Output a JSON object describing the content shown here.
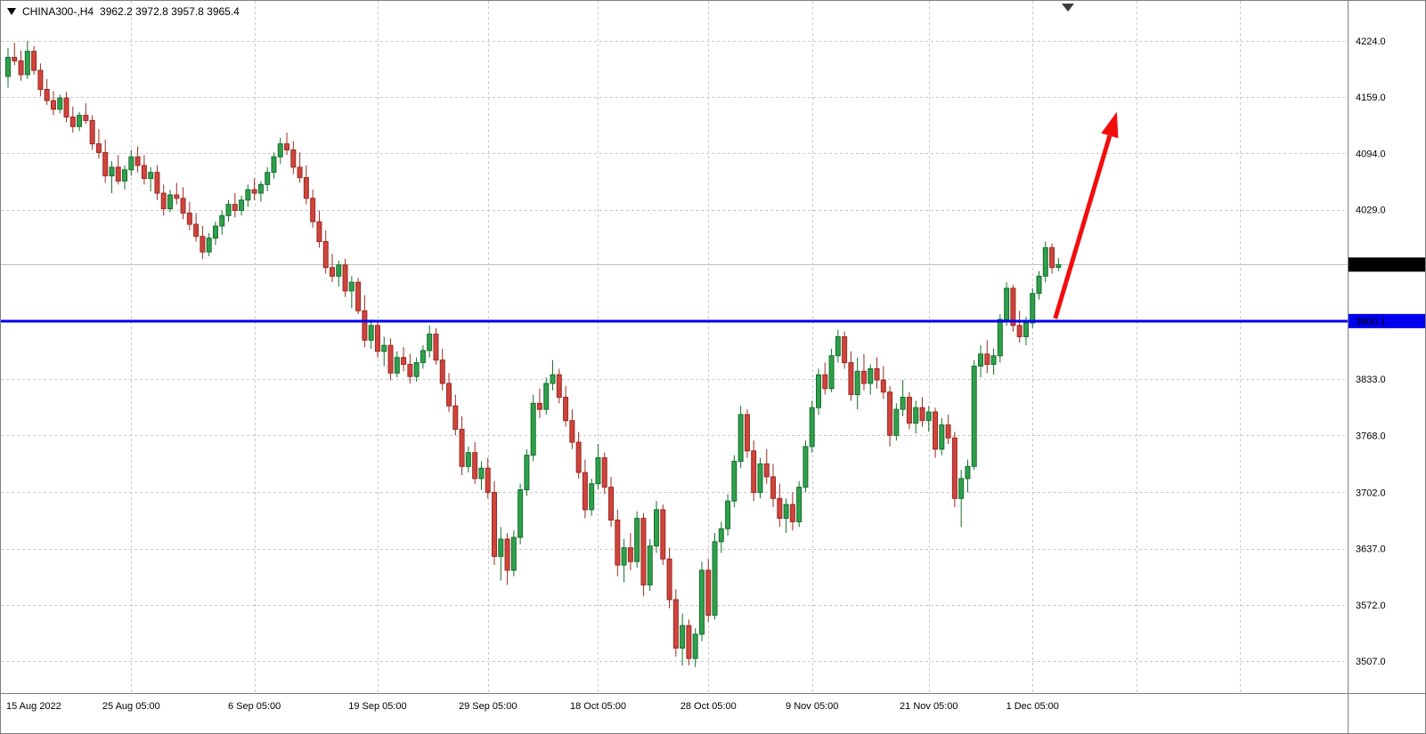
{
  "header": {
    "symbol_timeframe": "CHINA300-,H4",
    "ohlc_values": "3962.2 3972.8 3957.8 3965.4"
  },
  "chart_data": {
    "type": "candlestick",
    "symbol": "CHINA300-",
    "timeframe": "H4",
    "last_ohlc": {
      "open": 3962.2,
      "high": 3972.8,
      "low": 3957.8,
      "close": 3965.4
    },
    "style": {
      "up_fill": "#2FA04B",
      "up_stroke": "#156F2D",
      "down_fill": "#D0443C",
      "down_stroke": "#992A23",
      "grid_color": "#C8C8C8",
      "axis_line_color": "#808080"
    },
    "y_axis": {
      "decimals": 1,
      "gridline_values": [
        4224.0,
        4159.0,
        4094.0,
        4029.0,
        3833.0,
        3768.0,
        3702.0,
        3637.0,
        3572.0,
        3507.0
      ]
    },
    "x_axis": {
      "ticks": [
        {
          "index": 0,
          "label": "15 Aug 2022"
        },
        {
          "index": 19,
          "label": "25 Aug 05:00"
        },
        {
          "index": 38,
          "label": "6 Sep 05:00"
        },
        {
          "index": 57,
          "label": "19 Sep 05:00"
        },
        {
          "index": 74,
          "label": "29 Sep 05:00"
        },
        {
          "index": 91,
          "label": "18 Oct 05:00"
        },
        {
          "index": 108,
          "label": "28 Oct 05:00"
        },
        {
          "index": 124,
          "label": "9 Nov 05:00"
        },
        {
          "index": 142,
          "label": "21 Nov 05:00"
        },
        {
          "index": 158,
          "label": "1 Dec 05:00"
        }
      ],
      "extra_gridline_indices": [
        174,
        190
      ]
    },
    "last_price": {
      "value": 3965.4,
      "badge_bg": "#000000",
      "badge_text_color": "#FFFFFF",
      "line_color": "#C0C0C0"
    },
    "hline": {
      "value": 3900.1,
      "color": "#0000EE",
      "width": 3,
      "badge_text_color": "#FFFFFF"
    },
    "arrow": {
      "color": "#F20D0D",
      "from": {
        "i": 161.5,
        "price": 3903
      },
      "to": {
        "i": 171,
        "price": 4142
      }
    },
    "candles": [
      [
        4183,
        4216,
        4170,
        4205
      ],
      [
        4205,
        4222,
        4196,
        4201
      ],
      [
        4201,
        4213,
        4178,
        4185
      ],
      [
        4185,
        4224,
        4180,
        4212
      ],
      [
        4212,
        4218,
        4185,
        4190
      ],
      [
        4190,
        4198,
        4160,
        4168
      ],
      [
        4168,
        4180,
        4150,
        4155
      ],
      [
        4155,
        4166,
        4138,
        4145
      ],
      [
        4145,
        4162,
        4140,
        4158
      ],
      [
        4158,
        4165,
        4130,
        4136
      ],
      [
        4136,
        4148,
        4118,
        4125
      ],
      [
        4125,
        4142,
        4120,
        4138
      ],
      [
        4138,
        4152,
        4128,
        4132
      ],
      [
        4132,
        4138,
        4098,
        4105
      ],
      [
        4105,
        4122,
        4088,
        4095
      ],
      [
        4095,
        4110,
        4060,
        4068
      ],
      [
        4068,
        4085,
        4048,
        4078
      ],
      [
        4078,
        4092,
        4058,
        4062
      ],
      [
        4062,
        4080,
        4052,
        4075
      ],
      [
        4075,
        4098,
        4068,
        4090
      ],
      [
        4090,
        4102,
        4072,
        4080
      ],
      [
        4080,
        4092,
        4058,
        4065
      ],
      [
        4065,
        4078,
        4050,
        4072
      ],
      [
        4072,
        4080,
        4040,
        4048
      ],
      [
        4048,
        4058,
        4022,
        4030
      ],
      [
        4030,
        4052,
        4026,
        4046
      ],
      [
        4046,
        4060,
        4035,
        4042
      ],
      [
        4042,
        4055,
        4018,
        4025
      ],
      [
        4025,
        4038,
        4005,
        4012
      ],
      [
        4012,
        4025,
        3992,
        3998
      ],
      [
        3998,
        4010,
        3972,
        3980
      ],
      [
        3980,
        4002,
        3975,
        3996
      ],
      [
        3996,
        4015,
        3988,
        4010
      ],
      [
        4010,
        4028,
        4000,
        4022
      ],
      [
        4022,
        4040,
        4015,
        4035
      ],
      [
        4035,
        4048,
        4020,
        4028
      ],
      [
        4028,
        4045,
        4022,
        4040
      ],
      [
        4040,
        4058,
        4032,
        4052
      ],
      [
        4052,
        4065,
        4040,
        4048
      ],
      [
        4048,
        4062,
        4038,
        4058
      ],
      [
        4058,
        4078,
        4050,
        4072
      ],
      [
        4072,
        4095,
        4065,
        4090
      ],
      [
        4090,
        4112,
        4082,
        4105
      ],
      [
        4105,
        4118,
        4092,
        4098
      ],
      [
        4098,
        4108,
        4070,
        4078
      ],
      [
        4078,
        4095,
        4060,
        4066
      ],
      [
        4066,
        4080,
        4035,
        4042
      ],
      [
        4042,
        4052,
        4008,
        4015
      ],
      [
        4015,
        4028,
        3985,
        3992
      ],
      [
        3992,
        4005,
        3955,
        3962
      ],
      [
        3962,
        3978,
        3945,
        3952
      ],
      [
        3952,
        3970,
        3940,
        3965
      ],
      [
        3965,
        3972,
        3928,
        3935
      ],
      [
        3935,
        3952,
        3915,
        3945
      ],
      [
        3945,
        3950,
        3908,
        3912
      ],
      [
        3912,
        3930,
        3870,
        3878
      ],
      [
        3878,
        3902,
        3868,
        3895
      ],
      [
        3895,
        3900,
        3858,
        3865
      ],
      [
        3865,
        3882,
        3848,
        3872
      ],
      [
        3872,
        3880,
        3832,
        3840
      ],
      [
        3840,
        3865,
        3835,
        3858
      ],
      [
        3858,
        3870,
        3842,
        3850
      ],
      [
        3850,
        3862,
        3828,
        3836
      ],
      [
        3836,
        3858,
        3830,
        3852
      ],
      [
        3852,
        3872,
        3845,
        3866
      ],
      [
        3866,
        3895,
        3858,
        3885
      ],
      [
        3885,
        3892,
        3850,
        3855
      ],
      [
        3855,
        3868,
        3820,
        3828
      ],
      [
        3828,
        3840,
        3795,
        3802
      ],
      [
        3802,
        3815,
        3768,
        3775
      ],
      [
        3775,
        3790,
        3722,
        3732
      ],
      [
        3732,
        3755,
        3725,
        3748
      ],
      [
        3748,
        3760,
        3712,
        3718
      ],
      [
        3718,
        3738,
        3705,
        3730
      ],
      [
        3730,
        3742,
        3695,
        3702
      ],
      [
        3702,
        3715,
        3618,
        3628
      ],
      [
        3628,
        3662,
        3600,
        3648
      ],
      [
        3648,
        3655,
        3595,
        3612
      ],
      [
        3612,
        3658,
        3605,
        3650
      ],
      [
        3650,
        3712,
        3642,
        3705
      ],
      [
        3705,
        3752,
        3698,
        3745
      ],
      [
        3745,
        3815,
        3738,
        3805
      ],
      [
        3805,
        3822,
        3788,
        3798
      ],
      [
        3798,
        3835,
        3792,
        3828
      ],
      [
        3828,
        3855,
        3820,
        3838
      ],
      [
        3838,
        3845,
        3805,
        3812
      ],
      [
        3812,
        3825,
        3778,
        3785
      ],
      [
        3785,
        3798,
        3752,
        3760
      ],
      [
        3760,
        3772,
        3718,
        3725
      ],
      [
        3725,
        3740,
        3672,
        3682
      ],
      [
        3682,
        3718,
        3675,
        3712
      ],
      [
        3712,
        3758,
        3705,
        3742
      ],
      [
        3742,
        3748,
        3700,
        3708
      ],
      [
        3708,
        3720,
        3662,
        3670
      ],
      [
        3670,
        3682,
        3605,
        3618
      ],
      [
        3618,
        3648,
        3598,
        3638
      ],
      [
        3638,
        3655,
        3612,
        3622
      ],
      [
        3622,
        3680,
        3615,
        3672
      ],
      [
        3672,
        3678,
        3582,
        3595
      ],
      [
        3595,
        3648,
        3588,
        3640
      ],
      [
        3640,
        3692,
        3632,
        3682
      ],
      [
        3682,
        3688,
        3618,
        3625
      ],
      [
        3625,
        3638,
        3568,
        3578
      ],
      [
        3578,
        3590,
        3512,
        3522
      ],
      [
        3522,
        3562,
        3502,
        3548
      ],
      [
        3548,
        3555,
        3502,
        3510
      ],
      [
        3510,
        3545,
        3500,
        3538
      ],
      [
        3538,
        3622,
        3530,
        3612
      ],
      [
        3612,
        3625,
        3552,
        3560
      ],
      [
        3560,
        3655,
        3555,
        3645
      ],
      [
        3645,
        3668,
        3632,
        3660
      ],
      [
        3660,
        3700,
        3652,
        3692
      ],
      [
        3692,
        3745,
        3685,
        3738
      ],
      [
        3738,
        3802,
        3730,
        3792
      ],
      [
        3792,
        3798,
        3742,
        3750
      ],
      [
        3750,
        3762,
        3692,
        3702
      ],
      [
        3702,
        3742,
        3695,
        3735
      ],
      [
        3735,
        3752,
        3712,
        3720
      ],
      [
        3720,
        3735,
        3685,
        3695
      ],
      [
        3695,
        3712,
        3662,
        3672
      ],
      [
        3672,
        3695,
        3655,
        3688
      ],
      [
        3688,
        3702,
        3658,
        3668
      ],
      [
        3668,
        3715,
        3662,
        3708
      ],
      [
        3708,
        3762,
        3702,
        3755
      ],
      [
        3755,
        3808,
        3748,
        3800
      ],
      [
        3800,
        3845,
        3792,
        3838
      ],
      [
        3838,
        3852,
        3815,
        3822
      ],
      [
        3822,
        3868,
        3818,
        3860
      ],
      [
        3860,
        3890,
        3852,
        3882
      ],
      [
        3882,
        3888,
        3845,
        3852
      ],
      [
        3852,
        3865,
        3808,
        3815
      ],
      [
        3815,
        3858,
        3798,
        3842
      ],
      [
        3842,
        3862,
        3820,
        3828
      ],
      [
        3828,
        3850,
        3815,
        3845
      ],
      [
        3845,
        3858,
        3822,
        3832
      ],
      [
        3832,
        3848,
        3810,
        3818
      ],
      [
        3818,
        3825,
        3755,
        3768
      ],
      [
        3768,
        3805,
        3762,
        3798
      ],
      [
        3798,
        3832,
        3790,
        3812
      ],
      [
        3812,
        3818,
        3775,
        3782
      ],
      [
        3782,
        3808,
        3770,
        3800
      ],
      [
        3800,
        3812,
        3778,
        3785
      ],
      [
        3785,
        3802,
        3772,
        3795
      ],
      [
        3795,
        3800,
        3742,
        3752
      ],
      [
        3752,
        3788,
        3745,
        3780
      ],
      [
        3780,
        3792,
        3758,
        3765
      ],
      [
        3765,
        3772,
        3685,
        3695
      ],
      [
        3695,
        3728,
        3662,
        3718
      ],
      [
        3718,
        3740,
        3702,
        3732
      ],
      [
        3732,
        3855,
        3728,
        3848
      ],
      [
        3848,
        3872,
        3835,
        3862
      ],
      [
        3862,
        3878,
        3840,
        3850
      ],
      [
        3850,
        3868,
        3838,
        3860
      ],
      [
        3860,
        3908,
        3852,
        3902
      ],
      [
        3902,
        3945,
        3895,
        3938
      ],
      [
        3938,
        3942,
        3888,
        3895
      ],
      [
        3895,
        3912,
        3875,
        3882
      ],
      [
        3882,
        3905,
        3872,
        3898
      ],
      [
        3898,
        3938,
        3892,
        3932
      ],
      [
        3932,
        3958,
        3925,
        3952
      ],
      [
        3952,
        3992,
        3945,
        3985
      ],
      [
        3985,
        3990,
        3955,
        3962
      ],
      [
        3962.2,
        3972.8,
        3957.8,
        3965.4
      ]
    ]
  }
}
